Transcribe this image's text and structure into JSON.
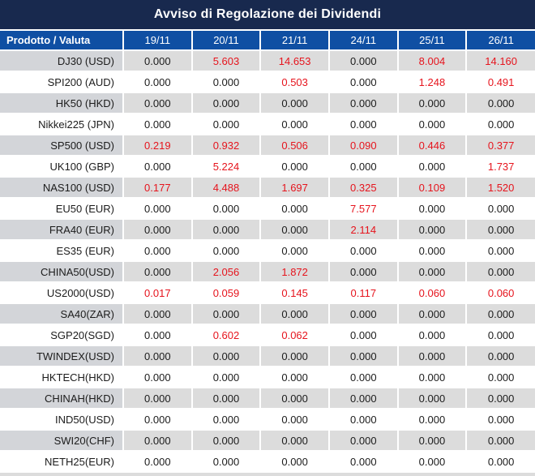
{
  "title": "Avviso di Regolazione dei Dividendi",
  "table": {
    "product_header": "Prodotto / Valuta",
    "date_headers": [
      "19/11",
      "20/11",
      "21/11",
      "24/11",
      "25/11",
      "26/11"
    ],
    "zero_value": "0.000",
    "rows": [
      {
        "product": "DJ30 (USD)",
        "values": [
          "0.000",
          "5.603",
          "14.653",
          "0.000",
          "8.004",
          "14.160"
        ]
      },
      {
        "product": "SPI200 (AUD)",
        "values": [
          "0.000",
          "0.000",
          "0.503",
          "0.000",
          "1.248",
          "0.491"
        ]
      },
      {
        "product": "HK50 (HKD)",
        "values": [
          "0.000",
          "0.000",
          "0.000",
          "0.000",
          "0.000",
          "0.000"
        ]
      },
      {
        "product": "Nikkei225 (JPN)",
        "values": [
          "0.000",
          "0.000",
          "0.000",
          "0.000",
          "0.000",
          "0.000"
        ]
      },
      {
        "product": "SP500 (USD)",
        "values": [
          "0.219",
          "0.932",
          "0.506",
          "0.090",
          "0.446",
          "0.377"
        ]
      },
      {
        "product": "UK100 (GBP)",
        "values": [
          "0.000",
          "5.224",
          "0.000",
          "0.000",
          "0.000",
          "1.737"
        ]
      },
      {
        "product": "NAS100 (USD)",
        "values": [
          "0.177",
          "4.488",
          "1.697",
          "0.325",
          "0.109",
          "1.520"
        ]
      },
      {
        "product": "EU50 (EUR)",
        "values": [
          "0.000",
          "0.000",
          "0.000",
          "7.577",
          "0.000",
          "0.000"
        ]
      },
      {
        "product": "FRA40 (EUR)",
        "values": [
          "0.000",
          "0.000",
          "0.000",
          "2.114",
          "0.000",
          "0.000"
        ]
      },
      {
        "product": "ES35 (EUR)",
        "values": [
          "0.000",
          "0.000",
          "0.000",
          "0.000",
          "0.000",
          "0.000"
        ]
      },
      {
        "product": "CHINA50(USD)",
        "values": [
          "0.000",
          "2.056",
          "1.872",
          "0.000",
          "0.000",
          "0.000"
        ]
      },
      {
        "product": "US2000(USD)",
        "values": [
          "0.017",
          "0.059",
          "0.145",
          "0.117",
          "0.060",
          "0.060"
        ]
      },
      {
        "product": "SA40(ZAR)",
        "values": [
          "0.000",
          "0.000",
          "0.000",
          "0.000",
          "0.000",
          "0.000"
        ]
      },
      {
        "product": "SGP20(SGD)",
        "values": [
          "0.000",
          "0.602",
          "0.062",
          "0.000",
          "0.000",
          "0.000"
        ]
      },
      {
        "product": "TWINDEX(USD)",
        "values": [
          "0.000",
          "0.000",
          "0.000",
          "0.000",
          "0.000",
          "0.000"
        ]
      },
      {
        "product": "HKTECH(HKD)",
        "values": [
          "0.000",
          "0.000",
          "0.000",
          "0.000",
          "0.000",
          "0.000"
        ]
      },
      {
        "product": "CHINAH(HKD)",
        "values": [
          "0.000",
          "0.000",
          "0.000",
          "0.000",
          "0.000",
          "0.000"
        ]
      },
      {
        "product": "IND50(USD)",
        "values": [
          "0.000",
          "0.000",
          "0.000",
          "0.000",
          "0.000",
          "0.000"
        ]
      },
      {
        "product": "SWI20(CHF)",
        "values": [
          "0.000",
          "0.000",
          "0.000",
          "0.000",
          "0.000",
          "0.000"
        ]
      },
      {
        "product": "NETH25(EUR)",
        "values": [
          "0.000",
          "0.000",
          "0.000",
          "0.000",
          "0.000",
          "0.000"
        ]
      }
    ]
  },
  "colors": {
    "title_bg": "#18294e",
    "header_bg": "#0f4fa3",
    "row_gray": "#dcdcdc",
    "product_gray": "#d3d5d9",
    "row_white": "#ffffff",
    "value_red": "#e6141d",
    "text_dark": "#1c1c1c",
    "separator": "#ffffff"
  }
}
